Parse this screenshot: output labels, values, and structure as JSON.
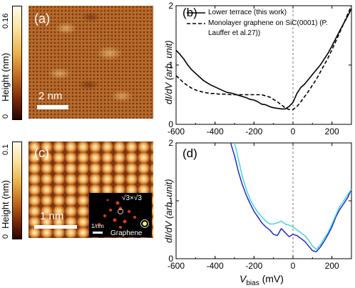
{
  "colorbar_a": {
    "label": "Height (nm)",
    "top": "0.16",
    "bottom": "0"
  },
  "colorbar_c": {
    "label": "Height (nm)",
    "top": "0.1",
    "bottom": "0"
  },
  "image_a": {
    "panel_label": "(a)",
    "scale_label": "2 nm"
  },
  "image_c": {
    "panel_label": "(c)",
    "scale_label": "1 nm",
    "inset_periodicity": "√3×√3",
    "inset_scale": "1/nm",
    "inset_graphene": "Graphene"
  },
  "chart_data": [
    {
      "type": "line",
      "panel_label": "(b)",
      "xlabel": "",
      "ylabel": "dI/dV (arb. unit)",
      "xlim": [
        -600,
        300
      ],
      "ylim": [
        0,
        2
      ],
      "xticks": [
        -600,
        -400,
        -200,
        0,
        200
      ],
      "yticks": [
        0,
        1,
        2
      ],
      "series": [
        {
          "name": "Lower terrace (this work)",
          "style": "solid",
          "color": "#000000",
          "x": [
            -600,
            -580,
            -560,
            -540,
            -520,
            -500,
            -480,
            -460,
            -440,
            -420,
            -400,
            -380,
            -360,
            -340,
            -320,
            -300,
            -280,
            -260,
            -240,
            -220,
            -200,
            -180,
            -160,
            -140,
            -120,
            -100,
            -80,
            -60,
            -40,
            -20,
            0,
            20,
            40,
            60,
            80,
            100,
            120,
            140,
            160,
            180,
            200,
            220,
            240,
            260,
            280,
            300
          ],
          "y": [
            1.25,
            1.18,
            1.1,
            1.0,
            0.92,
            0.86,
            0.8,
            0.74,
            0.7,
            0.66,
            0.63,
            0.6,
            0.57,
            0.54,
            0.53,
            0.51,
            0.49,
            0.47,
            0.45,
            0.42,
            0.41,
            0.38,
            0.34,
            0.33,
            0.3,
            0.28,
            0.27,
            0.26,
            0.26,
            0.3,
            0.37,
            0.52,
            0.62,
            0.68,
            0.76,
            0.84,
            0.92,
            1.0,
            1.1,
            1.2,
            1.32,
            1.45,
            1.58,
            1.7,
            1.82,
            1.95
          ]
        },
        {
          "name": "Monolayer graphene on SiC(0001) (P. Lauffer et al.27))",
          "style": "dashed",
          "color": "#000000",
          "x": [
            -600,
            -580,
            -560,
            -540,
            -520,
            -500,
            -480,
            -460,
            -440,
            -420,
            -400,
            -380,
            -360,
            -340,
            -320,
            -300,
            -280,
            -260,
            -240,
            -220,
            -200,
            -180,
            -160,
            -140,
            -120,
            -100,
            -80,
            -60,
            -40,
            -20,
            0,
            20,
            40,
            60,
            80,
            100,
            120,
            140,
            160,
            180,
            200,
            220,
            240,
            260,
            280,
            300
          ],
          "y": [
            0.82,
            0.76,
            0.7,
            0.65,
            0.61,
            0.58,
            0.56,
            0.54,
            0.53,
            0.52,
            0.52,
            0.51,
            0.51,
            0.51,
            0.5,
            0.5,
            0.5,
            0.5,
            0.5,
            0.5,
            0.5,
            0.5,
            0.5,
            0.48,
            0.46,
            0.42,
            0.38,
            0.33,
            0.28,
            0.25,
            0.25,
            0.3,
            0.38,
            0.47,
            0.56,
            0.66,
            0.76,
            0.88,
            1.0,
            1.12,
            1.26,
            1.4,
            1.55,
            1.7,
            1.85,
            2.0
          ]
        }
      ]
    },
    {
      "type": "line",
      "panel_label": "(d)",
      "xlabel_main": "V",
      "xlabel_sub": "bias",
      "xlabel_unit": " (mV)",
      "ylabel": "dI/dV (arb. unit)",
      "xlim": [
        -600,
        300
      ],
      "ylim": [
        0,
        2
      ],
      "xticks": [
        -600,
        -400,
        -200,
        0,
        200
      ],
      "yticks": [
        0,
        1,
        2
      ],
      "series": [
        {
          "color": "#1a1acc",
          "x": [
            -320,
            -300,
            -280,
            -260,
            -240,
            -220,
            -200,
            -180,
            -160,
            -140,
            -120,
            -100,
            -80,
            -60,
            -40,
            -20,
            0,
            20,
            40,
            60,
            80,
            100,
            120,
            140,
            160,
            180,
            200,
            220,
            240,
            260,
            280,
            300
          ],
          "y": [
            2.0,
            1.78,
            1.5,
            1.28,
            1.1,
            0.95,
            0.82,
            0.72,
            0.62,
            0.55,
            0.5,
            0.42,
            0.4,
            0.52,
            0.45,
            0.38,
            0.42,
            0.4,
            0.35,
            0.3,
            0.22,
            0.14,
            0.12,
            0.2,
            0.3,
            0.42,
            0.55,
            0.72,
            0.85,
            0.95,
            1.05,
            1.2
          ]
        },
        {
          "color": "#33d6d6",
          "x": [
            -300,
            -280,
            -260,
            -240,
            -220,
            -200,
            -180,
            -160,
            -140,
            -120,
            -100,
            -80,
            -60,
            -40,
            -20,
            0,
            20,
            40,
            60,
            80,
            100,
            120,
            140,
            160,
            180,
            200,
            220,
            240,
            260,
            280,
            300
          ],
          "y": [
            2.0,
            1.72,
            1.42,
            1.2,
            1.02,
            0.9,
            0.8,
            0.72,
            0.65,
            0.6,
            0.6,
            0.62,
            0.65,
            0.6,
            0.58,
            0.55,
            0.5,
            0.45,
            0.4,
            0.32,
            0.22,
            0.16,
            0.24,
            0.35,
            0.45,
            0.6,
            0.75,
            0.9,
            1.0,
            1.1,
            1.2
          ]
        }
      ]
    }
  ]
}
